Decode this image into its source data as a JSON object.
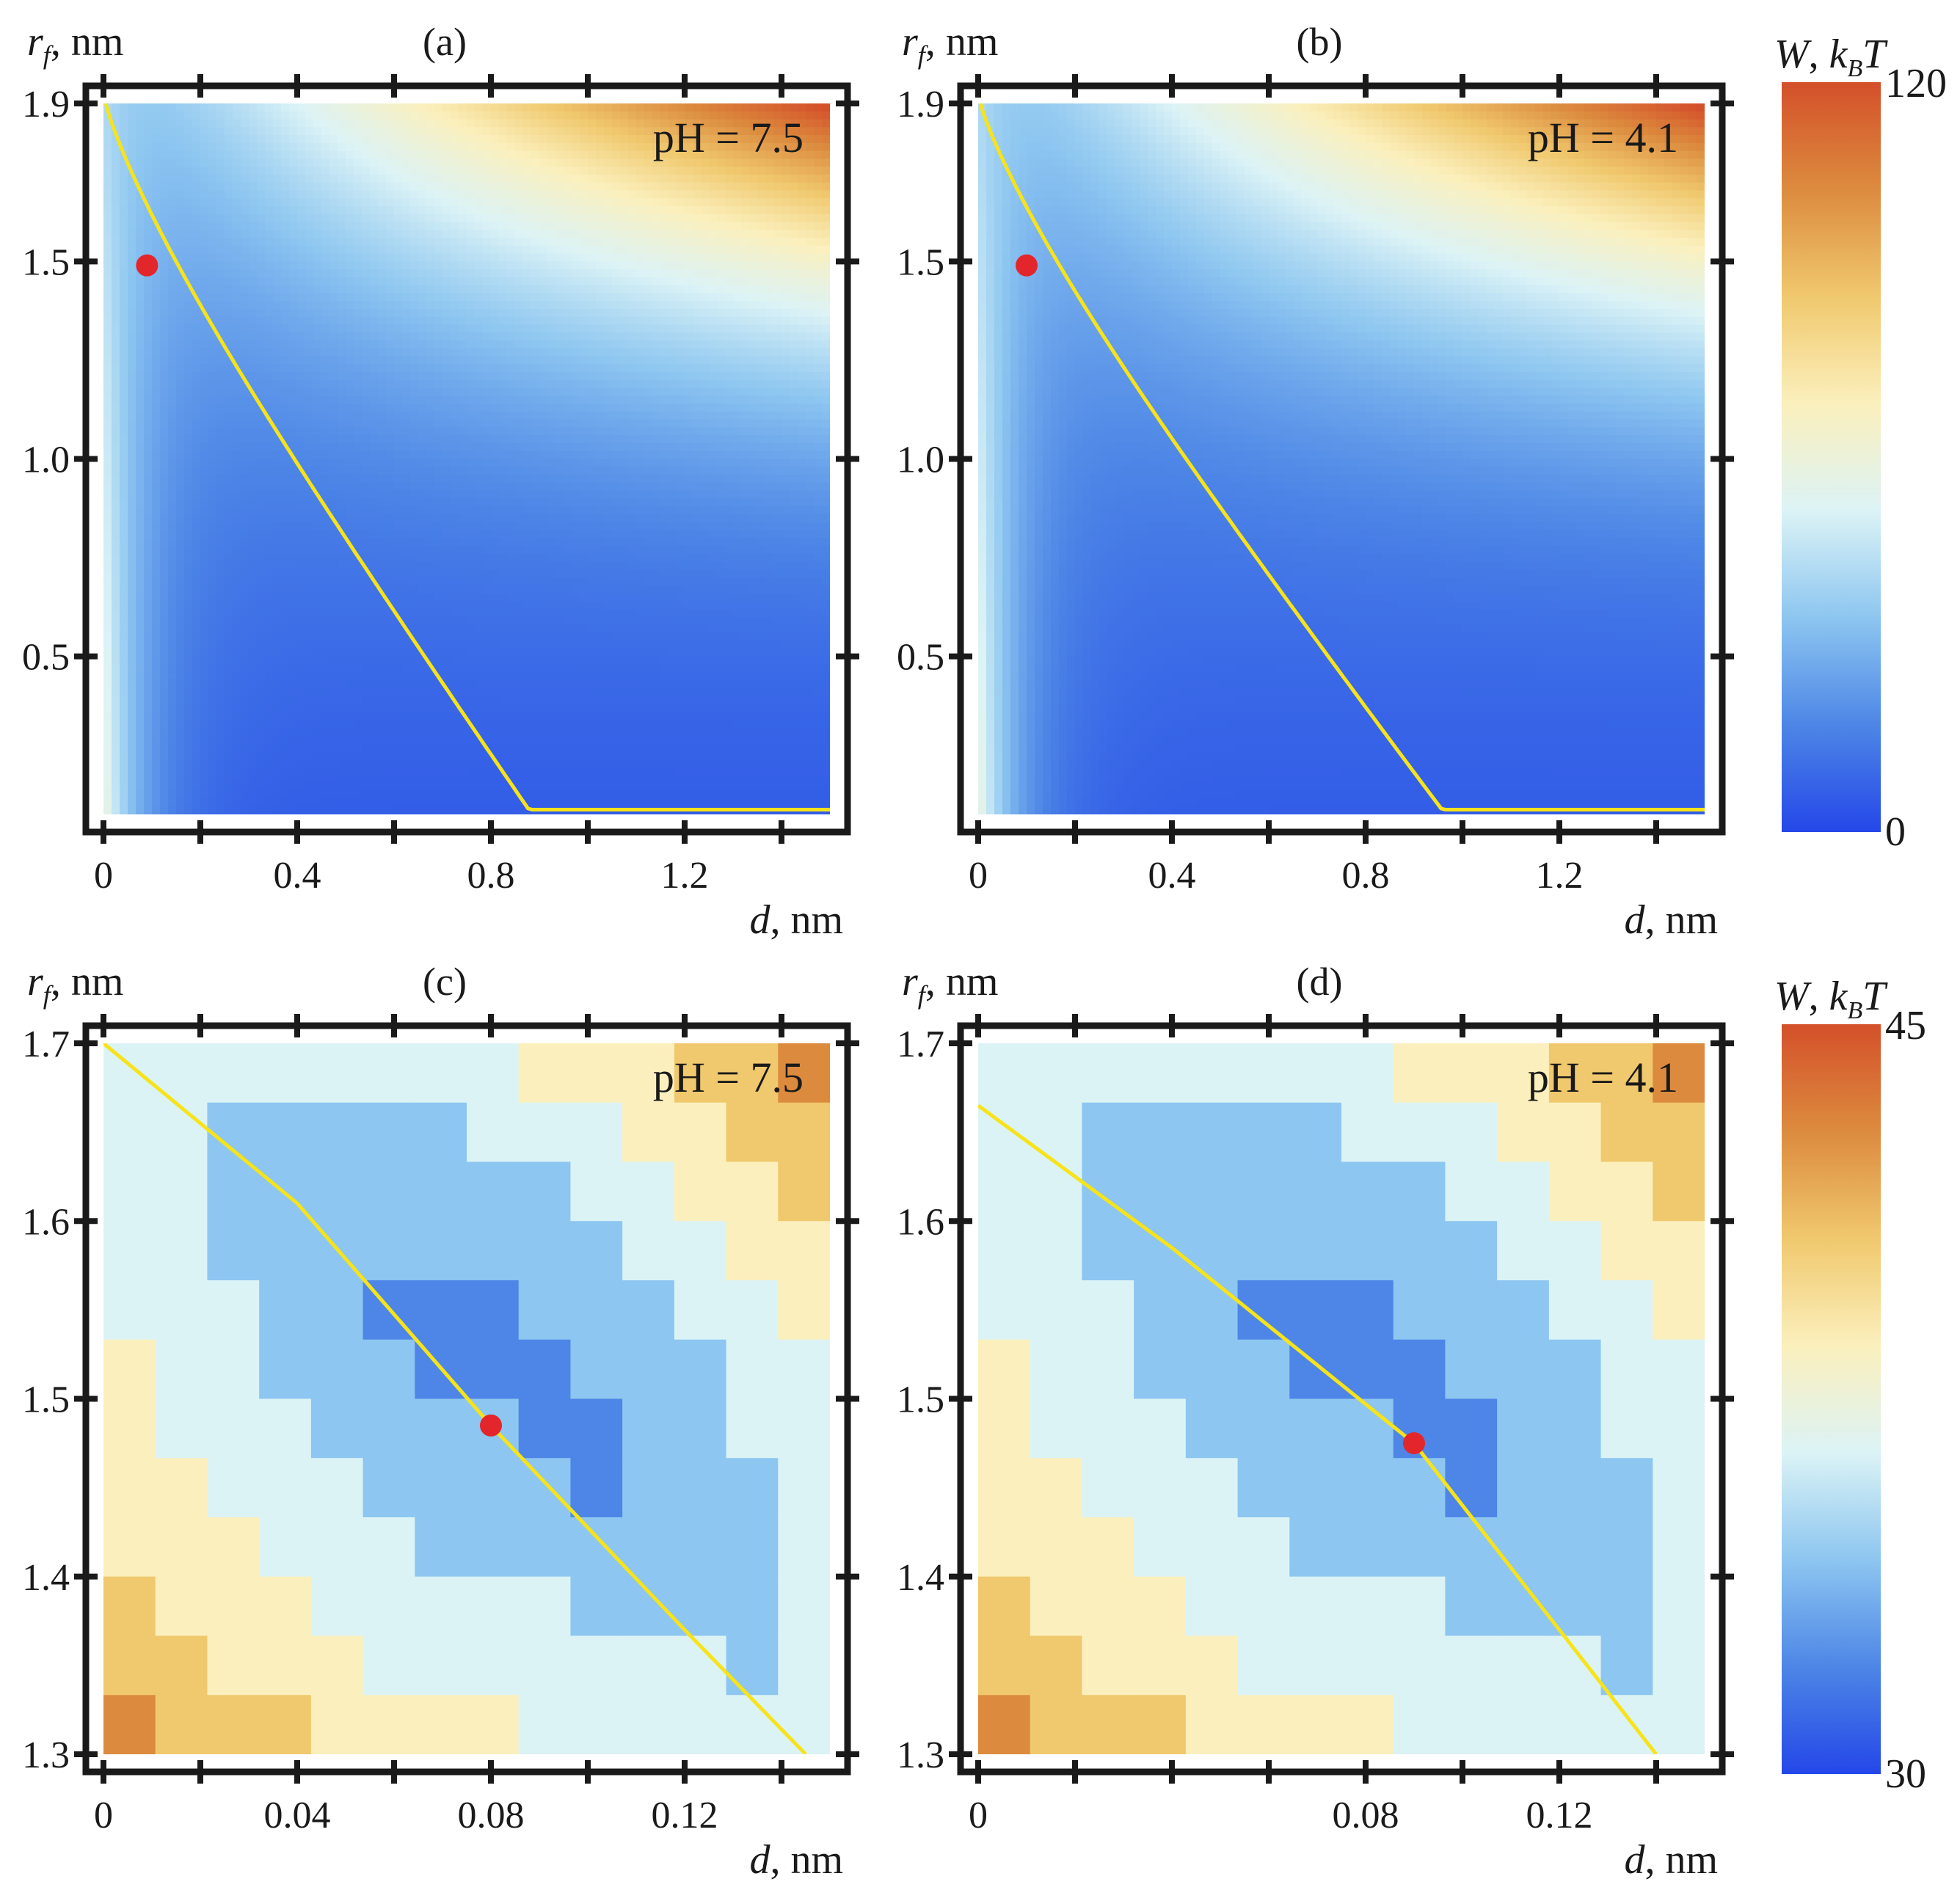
{
  "chart_data": [
    {
      "type": "heatmap",
      "panel_label": "(a)",
      "annotation": "pH = 7.5",
      "xlabel_var": "d",
      "xlabel_unit": ", nm",
      "ylabel_var": "r",
      "ylabel_sub": "f",
      "ylabel_unit": ", nm",
      "xlim": [
        0,
        1.5
      ],
      "ylim": [
        0.1,
        1.9
      ],
      "xticks": [
        0,
        0.4,
        0.8,
        1.2
      ],
      "xtick_labels": [
        "0",
        "0.4",
        "0.8",
        "1.2"
      ],
      "xminor": [
        0.2,
        0.6,
        1.0,
        1.4
      ],
      "yticks": [
        0.5,
        1.0,
        1.5,
        1.9
      ],
      "ytick_labels": [
        "0.5",
        "1.0",
        "1.5",
        "1.9"
      ],
      "colorbar_range": [
        0,
        120
      ],
      "field": "smooth",
      "curve": {
        "d0": 0.88,
        "curvature": 1.15
      },
      "marker": {
        "d": 0.09,
        "r": 1.49
      }
    },
    {
      "type": "heatmap",
      "panel_label": "(b)",
      "annotation": "pH = 4.1",
      "xlabel_var": "d",
      "xlabel_unit": ", nm",
      "ylabel_var": "r",
      "ylabel_sub": "f",
      "ylabel_unit": ", nm",
      "xlim": [
        0,
        1.5
      ],
      "ylim": [
        0.1,
        1.9
      ],
      "xticks": [
        0,
        0.4,
        0.8,
        1.2
      ],
      "xtick_labels": [
        "0",
        "0.4",
        "0.8",
        "1.2"
      ],
      "xminor": [
        0.2,
        0.6,
        1.0,
        1.4
      ],
      "yticks": [
        0.5,
        1.0,
        1.5,
        1.9
      ],
      "ytick_labels": [
        "0.5",
        "1.0",
        "1.5",
        "1.9"
      ],
      "colorbar_range": [
        0,
        120
      ],
      "field": "smooth",
      "curve": {
        "d0": 0.96,
        "curvature": 1.15
      },
      "marker": {
        "d": 0.1,
        "r": 1.49
      }
    },
    {
      "type": "heatmap",
      "panel_label": "(c)",
      "annotation": "pH = 7.5",
      "xlabel_var": "d",
      "xlabel_unit": ", nm",
      "ylabel_var": "r",
      "ylabel_sub": "f",
      "ylabel_unit": ", nm",
      "xlim": [
        0,
        0.15
      ],
      "ylim": [
        1.3,
        1.7
      ],
      "xticks": [
        0,
        0.04,
        0.08,
        0.12
      ],
      "xtick_labels": [
        "0",
        "0.04",
        "0.08",
        "0.12"
      ],
      "xminor": [
        0.02,
        0.06,
        0.1,
        0.14
      ],
      "yticks": [
        1.3,
        1.4,
        1.5,
        1.6,
        1.7
      ],
      "ytick_labels": [
        "1.3",
        "1.4",
        "1.5",
        "1.6",
        "1.7"
      ],
      "colorbar_range": [
        30,
        45
      ],
      "field": "banded",
      "curve_points": [
        [
          0,
          1.7
        ],
        [
          0.04,
          1.61
        ],
        [
          0.08,
          1.485
        ],
        [
          0.12,
          1.37
        ],
        [
          0.145,
          1.3
        ]
      ],
      "marker": {
        "d": 0.08,
        "r": 1.485
      }
    },
    {
      "type": "heatmap",
      "panel_label": "(d)",
      "annotation": "pH = 4.1",
      "xlabel_var": "d",
      "xlabel_unit": ", nm",
      "ylabel_var": "r",
      "ylabel_sub": "f",
      "ylabel_unit": ", nm",
      "xlim": [
        0,
        0.15
      ],
      "ylim": [
        1.3,
        1.7
      ],
      "xticks": [
        0,
        0.08,
        0.12
      ],
      "xtick_labels": [
        "0",
        "0.08",
        "0.12"
      ],
      "xminor": [
        0.02,
        0.04,
        0.06,
        0.1,
        0.14
      ],
      "yticks": [
        1.3,
        1.4,
        1.5,
        1.6,
        1.7
      ],
      "ytick_labels": [
        "1.3",
        "1.4",
        "1.5",
        "1.6",
        "1.7"
      ],
      "colorbar_range": [
        30,
        45
      ],
      "field": "banded",
      "curve_points": [
        [
          0,
          1.665
        ],
        [
          0.04,
          1.585
        ],
        [
          0.09,
          1.475
        ],
        [
          0.12,
          1.37
        ],
        [
          0.14,
          1.3
        ]
      ],
      "marker": {
        "d": 0.09,
        "r": 1.475
      }
    }
  ],
  "colorbars": [
    {
      "label_var": "W",
      "label_unit_var": "k",
      "label_unit_sub": "B",
      "label_unit_tail": "T",
      "max": "120",
      "min": "0"
    },
    {
      "label_var": "W",
      "label_unit_var": "k",
      "label_unit_sub": "B",
      "label_unit_tail": "T",
      "max": "45",
      "min": "30"
    }
  ],
  "colors": {
    "scale": [
      "#2447e8",
      "#4d86e6",
      "#8dc6f0",
      "#dcf3f6",
      "#fbf0bd",
      "#f0c86d",
      "#dc8b3e",
      "#d4502a"
    ],
    "curve": "#f7e31a",
    "marker": "#e3262b",
    "frame": "#1a1a1a"
  }
}
